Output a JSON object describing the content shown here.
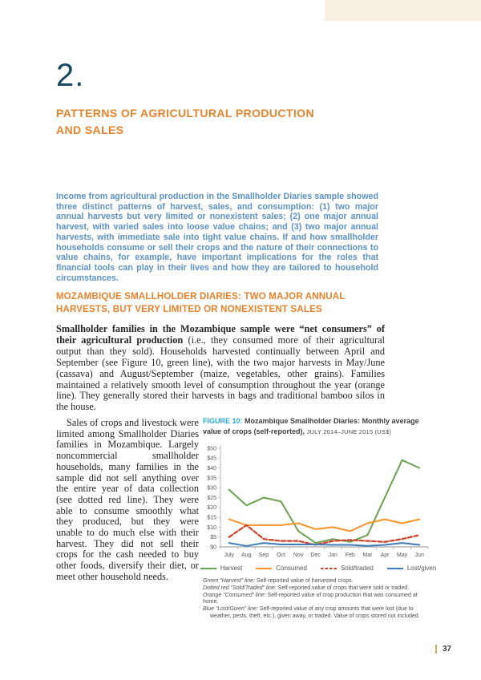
{
  "page": {
    "chapter_number": "2.",
    "chapter_title": "PATTERNS OF AGRICULTURAL PRODUCTION AND SALES",
    "intro": "Income from agricultural production in the Smallholder Diaries sample showed three distinct patterns of harvest, sales, and consumption: (1) two major annual harvests but very limited or nonexistent sales; (2) one major annual harvest, with varied sales into loose value chains; and (3) two major annual harvests, with immediate sale into tight value chains. If and how smallholder households consume or sell their crops and the nature of their connections to value chains, for example, have important implications for the roles that financial tools can play in their lives and how they are tailored to household circumstances.",
    "section_heading": "MOZAMBIQUE SMALLHOLDER DIARIES: TWO MAJOR ANNUAL HARVESTS, BUT VERY LIMITED OR NONEXISTENT SALES",
    "lead_paragraph_bold": "Smallholder families in the Mozambique sample were “net consumers” of their agricultural production",
    "lead_paragraph_rest": " (i.e., they consumed more of their agricultural output than they sold). Households harvested continually between April and September (see Figure 10, green line), with the two major harvests in May/June (cassava) and August/September (maize, vegetables, other grains). Families maintained a relatively smooth level of consumption throughout the year (orange line). They generally stored their harvests in bags and traditional bamboo silos in the house.",
    "column_paragraph": "Sales of crops and livestock were limited among Smallholder Diaries families in Mozambique. Largely noncommercial smallholder households, many families in the sample did not sell anything over the entire year of data collection (see dotted red line). They were able to consume smoothly what they produced, but they were unable to do much else with their harvest. They did not sell their crops for the cash needed to buy other foods, diversify their diet, or meet other household needs.",
    "page_number": "37"
  },
  "figure": {
    "label": "FIGURE 10:",
    "caption": "Mozambique Smallholder Diaries: Monthly average value of crops (self-reported),",
    "caption_suffix": "JULY 2014–JUNE 2015 (US$)"
  },
  "chart_data": {
    "type": "line",
    "title": "Mozambique Smallholder Diaries: Monthly average value of crops (self-reported), July 2014–June 2015 (US$)",
    "categories": [
      "July",
      "Aug",
      "Sep",
      "Oct",
      "Nov",
      "Dec",
      "Jan",
      "Feb",
      "Mar",
      "Apr",
      "May",
      "Jun"
    ],
    "series": [
      {
        "name": "Harvest",
        "color": "#6ba24f",
        "style": "solid",
        "values": [
          29,
          21,
          25,
          23,
          8,
          2,
          4,
          2.5,
          6,
          25,
          44,
          40
        ]
      },
      {
        "name": "Consumed",
        "color": "#f79428",
        "style": "solid",
        "values": [
          14,
          11,
          11,
          11,
          12,
          9,
          10,
          8,
          12,
          14,
          12,
          14
        ]
      },
      {
        "name": "Sold/traded",
        "color": "#cc3f28",
        "style": "dashed",
        "values": [
          5,
          11,
          4,
          3,
          3,
          1,
          3,
          3.5,
          3,
          2.5,
          4,
          6
        ]
      },
      {
        "name": "Lost/given",
        "color": "#3f7cba",
        "style": "solid",
        "values": [
          2,
          0.5,
          2,
          1.2,
          1.2,
          1.2,
          1,
          1,
          0.5,
          1,
          2,
          1
        ]
      }
    ],
    "ylim": [
      0,
      50
    ],
    "ytick_step": 5,
    "ytick_prefix": "$",
    "grid": false,
    "legend_position": "bottom"
  },
  "footnotes": [
    {
      "lead": "Green “Harvest” line:",
      "text": " Self-reported value of harvested crops."
    },
    {
      "lead": "Dotted red “Sold/Traded” line:",
      "text": " Self-reported value of crops that were sold or traded."
    },
    {
      "lead": "Orange “Consumed” line:",
      "text": " Self-reported value of crop production that was consumed at home."
    },
    {
      "lead": "Blue “Lost/Given” line:",
      "text": " Self-reported value of any crop amounts that were lost (due to weather, pests, theft, etc.), given away, or traded. Value of crops stored not included."
    }
  ],
  "colors": {
    "chapter_blue": "#1b4a63",
    "heading_orange": "#e8822b",
    "intro_blue": "#5c92c6",
    "figure_label_blue": "#29a9e0",
    "corner_band_cream": "#f8f1e2",
    "footer_bar_tan": "#dcab62"
  }
}
